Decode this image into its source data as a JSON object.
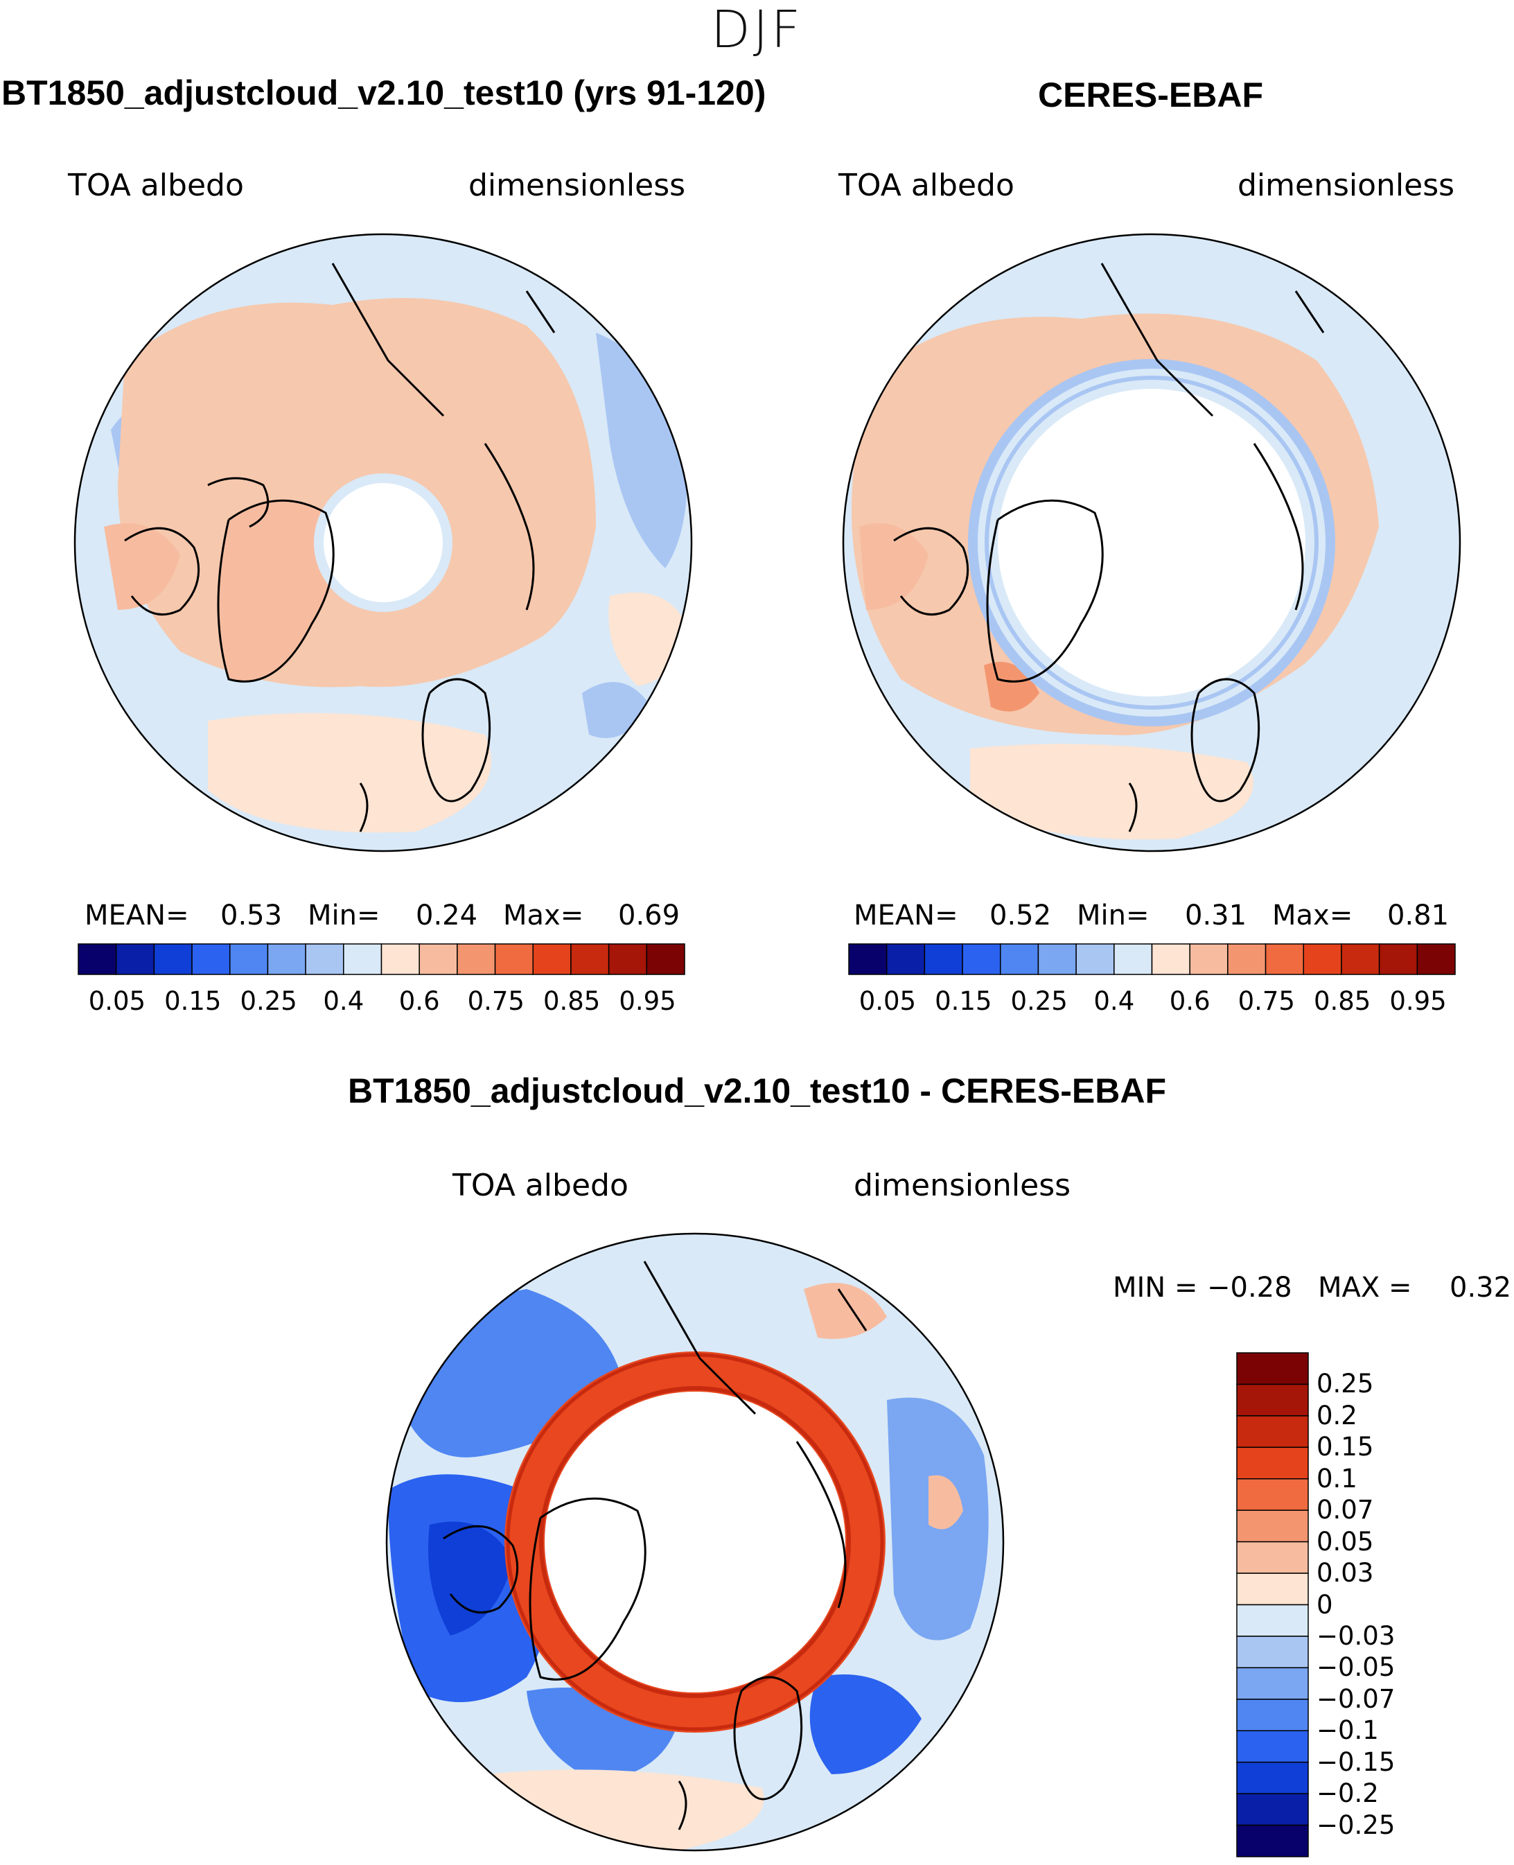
{
  "figure": {
    "season": "DJF",
    "difference_title": "BT1850_adjustcloud_v2.10_test10 - CERES-EBAF"
  },
  "colors": {
    "ocean_light_blue": "#d9e9f7",
    "land_peach": "#f6c8ad",
    "ring_red": "#e8471f",
    "coast": "#000000"
  },
  "panels": [
    {
      "title": "BT1850_adjustcloud_v2.10_test10 (yrs 91-120)",
      "variable": "TOA albedo",
      "units": "dimensionless",
      "mean_label": "MEAN=",
      "mean": "0.53",
      "min_label": "Min=",
      "min": "0.24",
      "max_label": "Max=",
      "max": "0.69"
    },
    {
      "title": "CERES-EBAF",
      "variable": "TOA albedo",
      "units": "dimensionless",
      "mean_label": "MEAN=",
      "mean": "0.52",
      "min_label": "Min=",
      "min": "0.31",
      "max_label": "Max=",
      "max": "0.81"
    }
  ],
  "difference": {
    "variable": "TOA albedo",
    "units": "dimensionless",
    "min_label": "MIN =",
    "min": "−0.28",
    "max_label": "MAX =",
    "max": "0.32"
  },
  "chart_data": [
    {
      "type": "colorbar",
      "orientation": "horizontal",
      "name": "TOA albedo levels",
      "colors": [
        "#08006b",
        "#0a1fa8",
        "#0f3fd6",
        "#2b62f0",
        "#4f86f2",
        "#7aa6f2",
        "#a9c6f3",
        "#d9e9f7",
        "#fde4d3",
        "#f7bca0",
        "#f39670",
        "#f06b3f",
        "#e4431c",
        "#c72a0e",
        "#a51508",
        "#7c0303"
      ],
      "tick_labels": [
        "0.05",
        "0.15",
        "0.25",
        "0.4",
        "0.6",
        "0.75",
        "0.85",
        "0.95"
      ]
    },
    {
      "type": "colorbar",
      "orientation": "vertical",
      "name": "difference levels",
      "colors": [
        "#7c0303",
        "#a51508",
        "#c72a0e",
        "#e4431c",
        "#f06b3f",
        "#f39670",
        "#f7bca0",
        "#fde4d3",
        "#d9e9f7",
        "#a9c6f3",
        "#7aa6f2",
        "#4f86f2",
        "#2b62f0",
        "#0f3fd6",
        "#0a1fa8",
        "#08006b"
      ],
      "tick_labels": [
        "0.25",
        "0.2",
        "0.15",
        "0.1",
        "0.07",
        "0.05",
        "0.03",
        "0",
        "−0.03",
        "−0.05",
        "−0.07",
        "−0.1",
        "−0.15",
        "−0.2",
        "−0.25"
      ]
    }
  ]
}
